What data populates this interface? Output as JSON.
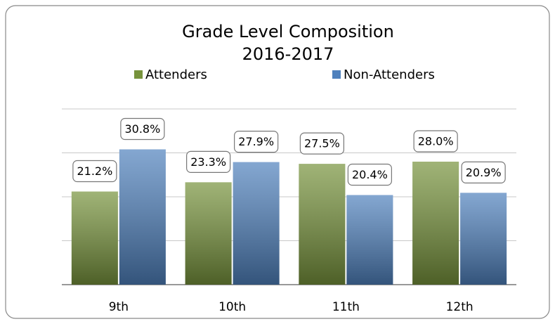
{
  "chart_data": {
    "type": "bar",
    "title": "Grade Level Composition",
    "subtitle": "2016-2017",
    "categories": [
      "9th",
      "10th",
      "11th",
      "12th"
    ],
    "series": [
      {
        "name": "Attenders",
        "color": "#77933c",
        "values": [
          21.2,
          23.3,
          27.5,
          28.0
        ],
        "value_labels": [
          "21.2%",
          "23.3%",
          "27.5%",
          "28.0%"
        ]
      },
      {
        "name": "Non-Attenders",
        "color": "#4f81bd",
        "values": [
          30.8,
          27.9,
          20.4,
          20.9
        ],
        "value_labels": [
          "30.8%",
          "27.9%",
          "20.4%",
          "20.9%"
        ]
      }
    ],
    "ylim": [
      0,
      40
    ],
    "yticks": [
      0,
      10,
      20,
      30,
      40
    ],
    "grid": true,
    "legend": "top"
  }
}
